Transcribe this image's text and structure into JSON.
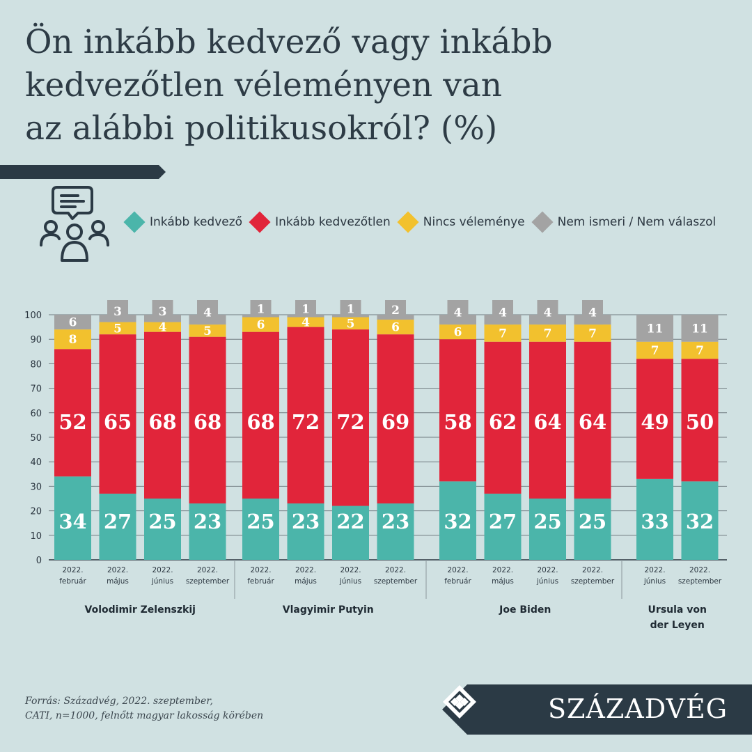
{
  "title": {
    "line1": "Ön inkább kedvező vagy inkább",
    "line2": "kedvezőtlen véleményen van",
    "line3": "az alábbi politikusokról? (%)"
  },
  "legend": [
    {
      "label": "Inkább kedvező",
      "color": "#4bb5aa"
    },
    {
      "label": "Inkább kedvezőtlen",
      "color": "#e1253a"
    },
    {
      "label": "Nincs véleménye",
      "color": "#f2c12e"
    },
    {
      "label": "Nem ismeri / Nem válaszol",
      "color": "#a3a3a3"
    }
  ],
  "icons": {
    "header": "people-discussion-icon",
    "brand": "brand-logo-icon"
  },
  "source": {
    "line1": "Forrás: Századvég, 2022. szeptember,",
    "line2": "CATI, n=1000, felnőtt magyar lakosság körében"
  },
  "brand": {
    "name": "SZÁZADVÉG"
  },
  "chart_data": {
    "type": "bar",
    "stacked": true,
    "ylim": [
      0,
      100
    ],
    "yticks": [
      0,
      10,
      20,
      30,
      40,
      50,
      60,
      70,
      80,
      90,
      100
    ],
    "grid": true,
    "legend_position": "top",
    "series_names": [
      "Inkább kedvező",
      "Inkább kedvezőtlen",
      "Nincs véleménye",
      "Nem ismeri / Nem válaszol"
    ],
    "colors": [
      "#4bb5aa",
      "#e1253a",
      "#f2c12e",
      "#a3a3a3"
    ],
    "groups": [
      {
        "name": "Volodimir Zelenszkij",
        "bars": [
          {
            "year": "2022.",
            "month": "február",
            "values": [
              34,
              52,
              8,
              6
            ]
          },
          {
            "year": "2022.",
            "month": "május",
            "values": [
              27,
              65,
              5,
              3
            ]
          },
          {
            "year": "2022.",
            "month": "június",
            "values": [
              25,
              68,
              4,
              3
            ]
          },
          {
            "year": "2022.",
            "month": "szeptember",
            "values": [
              23,
              68,
              5,
              4
            ]
          }
        ]
      },
      {
        "name": "Vlagyimir Putyin",
        "bars": [
          {
            "year": "2022.",
            "month": "február",
            "values": [
              25,
              68,
              6,
              1
            ]
          },
          {
            "year": "2022.",
            "month": "május",
            "values": [
              23,
              72,
              4,
              1
            ]
          },
          {
            "year": "2022.",
            "month": "június",
            "values": [
              22,
              72,
              5,
              1
            ]
          },
          {
            "year": "2022.",
            "month": "szeptember",
            "values": [
              23,
              69,
              6,
              2
            ]
          }
        ]
      },
      {
        "name": "Joe Biden",
        "bars": [
          {
            "year": "2022.",
            "month": "február",
            "values": [
              32,
              58,
              6,
              4
            ]
          },
          {
            "year": "2022.",
            "month": "május",
            "values": [
              27,
              62,
              7,
              4
            ]
          },
          {
            "year": "2022.",
            "month": "június",
            "values": [
              25,
              64,
              7,
              4
            ]
          },
          {
            "year": "2022.",
            "month": "szeptember",
            "values": [
              25,
              64,
              7,
              4
            ]
          }
        ]
      },
      {
        "name": "Ursula von der Leyen",
        "bars": [
          {
            "year": "2022.",
            "month": "június",
            "values": [
              33,
              49,
              7,
              11
            ]
          },
          {
            "year": "2022.",
            "month": "szeptember",
            "values": [
              32,
              50,
              7,
              11
            ]
          }
        ]
      }
    ]
  }
}
